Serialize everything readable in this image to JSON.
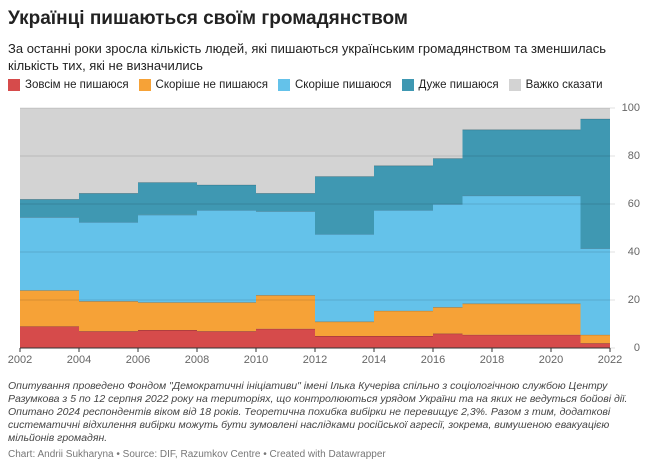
{
  "chart_data": {
    "type": "stacked-step-area",
    "title": "Українці пишаються своїм громадянством",
    "subtitle": "За останні роки зросла кількість людей, які пишаються українським громадянством та зменшилась кількість тих, які не визначились",
    "x": [
      2002,
      2004,
      2006,
      2008,
      2010,
      2012,
      2014,
      2016,
      2017,
      2021
    ],
    "xlim": [
      2002,
      2022
    ],
    "xticks": [
      2002,
      2004,
      2006,
      2008,
      2010,
      2012,
      2014,
      2016,
      2018,
      2020,
      2022
    ],
    "ylim": [
      0,
      100
    ],
    "yticks": [
      0,
      20,
      40,
      60,
      80,
      100
    ],
    "grid": true,
    "series": [
      {
        "name": "Зовсім не пишаюся",
        "color": "#d64b4b",
        "values": [
          9,
          7,
          7.5,
          7,
          8,
          5,
          5,
          6,
          5.5,
          2
        ]
      },
      {
        "name": "Скоріше не пишаюся",
        "color": "#f6a237",
        "values": [
          15,
          12.5,
          11.5,
          12,
          14,
          6,
          10.5,
          11,
          13,
          3.5
        ]
      },
      {
        "name": "Скоріше пишаюся",
        "color": "#64c2ea",
        "values": [
          30.5,
          33,
          36.5,
          38.5,
          35,
          36.5,
          42,
          43,
          45,
          36
        ]
      },
      {
        "name": "Дуже пишаюся",
        "color": "#3f98b2",
        "values": [
          7.5,
          12,
          13.5,
          10.5,
          7.5,
          24,
          18.5,
          19,
          27.5,
          54
        ]
      },
      {
        "name": "Важко сказати",
        "color": "#d3d3d3",
        "values": [
          38,
          35.5,
          31,
          32,
          35.5,
          28.5,
          24,
          21,
          9,
          4.5
        ]
      }
    ],
    "note": "Опитування проведено Фондом \"Демократичні ініціативи\" імені Ілька Кучеріва спільно з соціологічною службою Центру Разумкова з 5 по 12 серпня 2022 року на територіях, що контролюються урядом України та на яких не ведуться бойові дії. Опитано 2024 респондентів віком від 18 років. Теоретична похибка вибірки не перевищує 2,3%. Разом з тим, додаткові систематичні відхилення вибірки можуть бути зумовлені наслідками російської агресії, зокрема, вимушеною евакуацією мільйонів громадян.",
    "source": "Chart: Andrii Sukharyna • Source: DIF, Razumkov Centre • Created with Datawrapper"
  }
}
